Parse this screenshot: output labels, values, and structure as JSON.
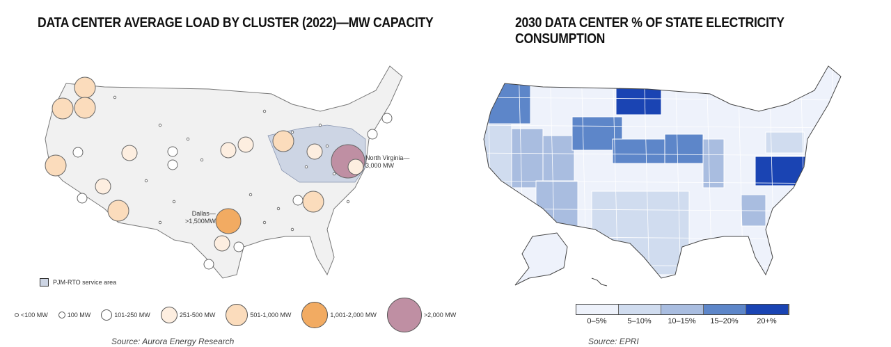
{
  "left": {
    "title": "DATA CENTER AVERAGE LOAD BY CLUSTER (2022)—MW CAPACITY",
    "source": "Source: Aurora Energy Research",
    "annotations": {
      "dallas": "Dallas—\n>1,500MW",
      "nova": "North Virginia—\n3,000 MW"
    },
    "pjm_label": "PJM-RTO service area",
    "legend": [
      {
        "label": "<100 MW",
        "color": "#ffffff"
      },
      {
        "label": "100 MW",
        "color": "#ffffff"
      },
      {
        "label": "101-250 MW",
        "color": "#ffffff"
      },
      {
        "label": "251-500 MW",
        "color": "#fdeee0"
      },
      {
        "label": "501-1,000 MW",
        "color": "#fbdcbc"
      },
      {
        "label": "1,001-2,000 MW",
        "color": "#f2ab62"
      },
      {
        "label": ">2,000 MW",
        "color": "#bf8fa3"
      }
    ]
  },
  "right": {
    "title": "2030 DATA CENTER % OF STATE ELECTRICITY CONSUMPTION",
    "source": "Source: EPRI",
    "scale": [
      {
        "label": "0–5%",
        "color": "#eef2fb"
      },
      {
        "label": "5–10%",
        "color": "#d0dcef"
      },
      {
        "label": "10–15%",
        "color": "#a9bde0"
      },
      {
        "label": "15–20%",
        "color": "#5d86c9"
      },
      {
        "label": "20+%",
        "color": "#1a44b3"
      }
    ],
    "states": {
      "OR": 3,
      "ND": 4,
      "WY": 3,
      "NE": 3,
      "IA": 3,
      "VA": 4,
      "NV": 2,
      "UT": 2,
      "AZ": 2,
      "CA": 1,
      "TX": 1,
      "IL": 2,
      "GA": 2,
      "PA": 1
    }
  }
}
